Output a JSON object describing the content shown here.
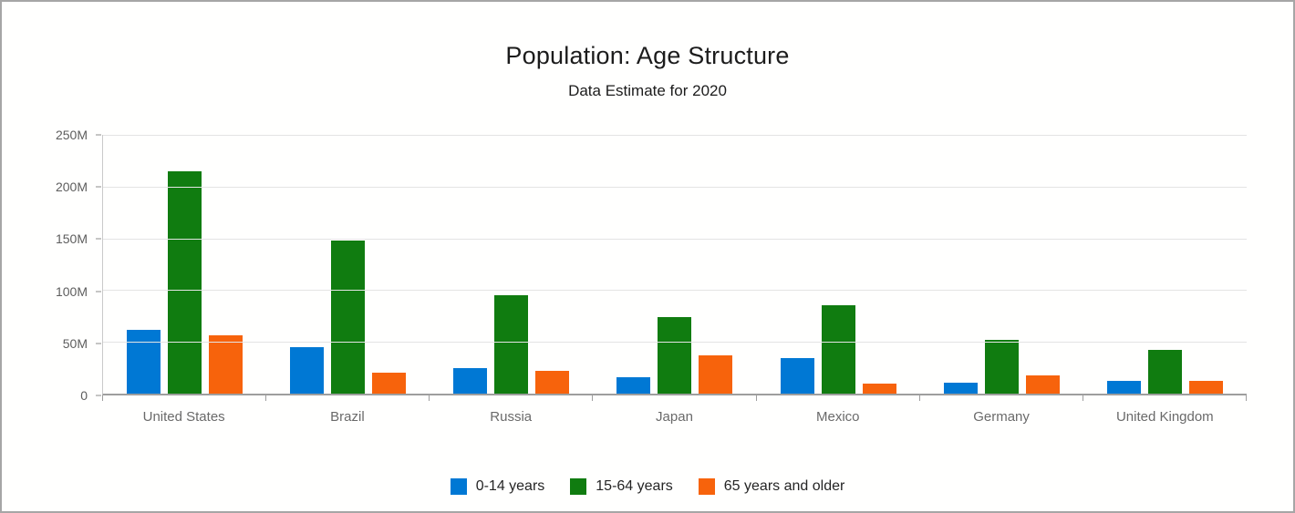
{
  "window": {
    "background": "#fffffe",
    "border_color": "#a6a6a6"
  },
  "chart_data": {
    "type": "bar",
    "title": "Population: Age Structure",
    "subtitle": "Data Estimate for 2020",
    "categories": [
      "United States",
      "Brazil",
      "Russia",
      "Japan",
      "Mexico",
      "Germany",
      "United Kingdom"
    ],
    "series": [
      {
        "name": "0-14 years",
        "color": "#0078D4",
        "values": [
          62,
          45,
          25,
          16,
          34,
          11,
          12
        ]
      },
      {
        "name": "15-64 years",
        "color": "#107C10",
        "values": [
          215,
          148,
          95,
          74,
          85,
          52,
          42
        ]
      },
      {
        "name": "65 years and older",
        "color": "#F7630C",
        "values": [
          56,
          20,
          22,
          37,
          10,
          18,
          12
        ]
      }
    ],
    "unit": "millions of people",
    "ylim": [
      0,
      250
    ],
    "yticks": [
      {
        "value": 0,
        "label": "0"
      },
      {
        "value": 50,
        "label": "50M"
      },
      {
        "value": 100,
        "label": "100M"
      },
      {
        "value": 150,
        "label": "150M"
      },
      {
        "value": 200,
        "label": "200M"
      },
      {
        "value": 250,
        "label": "250M"
      }
    ],
    "grid": "horizontal",
    "legend_position": "bottom",
    "colors": {
      "gridline": "#e4e4e4",
      "axis_line": "#9e9e9e",
      "tick_label": "#5d5d5d",
      "category_label": "#6a6a6a"
    }
  }
}
